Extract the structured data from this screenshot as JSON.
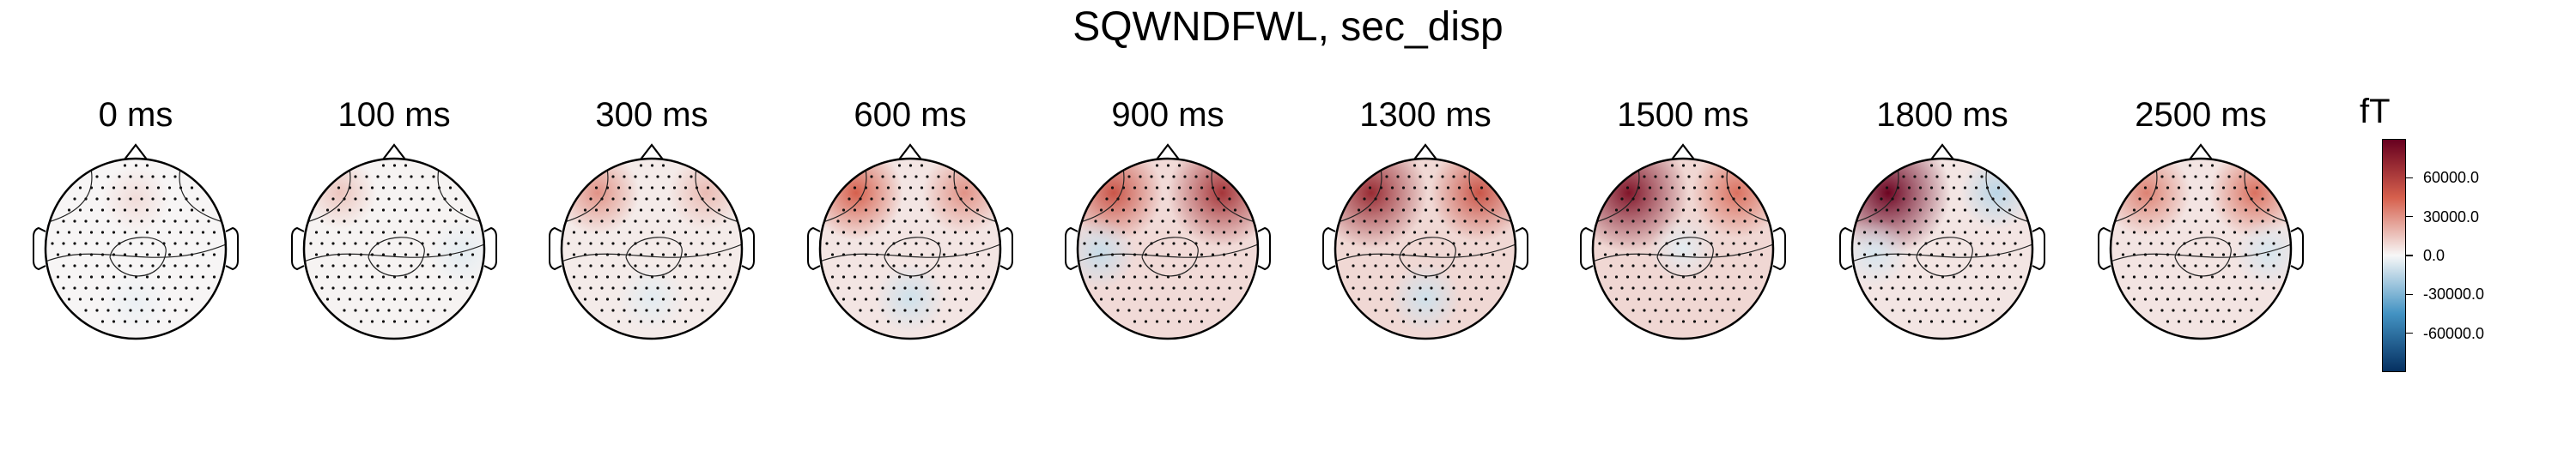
{
  "title": "SQWNDFWL, sec_disp",
  "colors": {
    "positive_max": "#67001f",
    "positive": "#d6604d",
    "neutral": "#f7f7f7",
    "negative": "#4393c3",
    "negative_max": "#053061"
  },
  "chart_data": {
    "type": "heatmap",
    "subtype": "topomap-series",
    "times": [
      "0 ms",
      "100 ms",
      "300 ms",
      "600 ms",
      "900 ms",
      "1300 ms",
      "1500 ms",
      "1800 ms",
      "2500 ms"
    ],
    "colorbar": {
      "unit": "fT",
      "cmap": "RdBu_r",
      "vlim": [
        -90000,
        90000
      ],
      "ticks": [
        60000.0,
        30000.0,
        0.0,
        -30000.0,
        -60000.0
      ],
      "tick_labels": [
        "60000.0",
        "30000.0",
        "0.0",
        "-30000.0",
        "-60000.0"
      ]
    },
    "maps": [
      {
        "time": "0 ms",
        "hotspots": [
          {
            "region": "frontal",
            "value": 8000
          },
          {
            "region": "occipital",
            "value": -3000
          }
        ]
      },
      {
        "time": "100 ms",
        "hotspots": [
          {
            "region": "left-frontal",
            "value": 15000
          },
          {
            "region": "right-temporal",
            "value": -5000
          }
        ]
      },
      {
        "time": "300 ms",
        "hotspots": [
          {
            "region": "left-frontal",
            "value": 30000
          },
          {
            "region": "right-frontal",
            "value": 18000
          },
          {
            "region": "posterior",
            "value": -5000
          }
        ]
      },
      {
        "time": "600 ms",
        "hotspots": [
          {
            "region": "left-frontal",
            "value": 45000
          },
          {
            "region": "right-frontal",
            "value": 30000
          },
          {
            "region": "posterior",
            "value": -10000
          }
        ]
      },
      {
        "time": "900 ms",
        "hotspots": [
          {
            "region": "left-frontal",
            "value": 50000
          },
          {
            "region": "right-frontal",
            "value": 65000
          },
          {
            "region": "left-temporal",
            "value": -12000
          }
        ]
      },
      {
        "time": "1300 ms",
        "hotspots": [
          {
            "region": "left-frontal",
            "value": 70000
          },
          {
            "region": "right-frontal",
            "value": 50000
          },
          {
            "region": "posterior",
            "value": -10000
          }
        ]
      },
      {
        "time": "1500 ms",
        "hotspots": [
          {
            "region": "left-frontal",
            "value": 80000
          },
          {
            "region": "right-frontal",
            "value": 40000
          },
          {
            "region": "central",
            "value": -5000
          }
        ]
      },
      {
        "time": "1800 ms",
        "hotspots": [
          {
            "region": "left-frontal",
            "value": 88000
          },
          {
            "region": "right-frontal",
            "value": -15000
          },
          {
            "region": "left-temporal",
            "value": -8000
          }
        ]
      },
      {
        "time": "2500 ms",
        "hotspots": [
          {
            "region": "left-frontal",
            "value": 35000
          },
          {
            "region": "right-frontal",
            "value": 40000
          },
          {
            "region": "right-temporal",
            "value": -8000
          }
        ]
      }
    ],
    "sensors": "dotted-grid",
    "contours": true,
    "grid": false,
    "legend": "right"
  }
}
